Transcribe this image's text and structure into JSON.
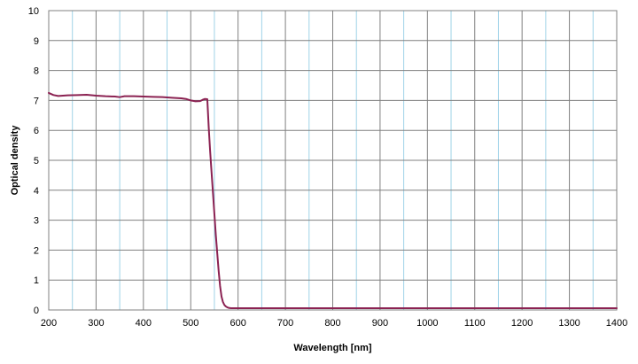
{
  "chart_data": {
    "type": "line",
    "title": "",
    "xlabel": "Wavelength [nm]",
    "ylabel": "Optical density",
    "xlim": [
      200,
      1400
    ],
    "ylim": [
      0,
      10
    ],
    "x_ticks": [
      200,
      300,
      400,
      500,
      600,
      700,
      800,
      900,
      1000,
      1100,
      1200,
      1300,
      1400
    ],
    "y_ticks": [
      0,
      1,
      2,
      3,
      4,
      5,
      6,
      7,
      8,
      9,
      10
    ],
    "x_minor_gridlines": [
      250,
      350,
      450,
      550,
      650,
      750,
      850,
      950,
      1050,
      1150,
      1250,
      1350
    ],
    "grid": true,
    "legend": "none",
    "colors": {
      "series": "#8B2252",
      "major_grid": "#808080",
      "minor_grid": "#9FD3E8",
      "plot_border": "#808080"
    },
    "series": [
      {
        "x": [
          200,
          210,
          220,
          240,
          260,
          280,
          300,
          320,
          340,
          350,
          360,
          380,
          400,
          420,
          440,
          460,
          480,
          490,
          500,
          510,
          520,
          525,
          530,
          535,
          538,
          541,
          544,
          547,
          550,
          553,
          556,
          559,
          562,
          565,
          568,
          571,
          574,
          577,
          580,
          585,
          590,
          600,
          650,
          700,
          800,
          900,
          1000,
          1100,
          1200,
          1300,
          1400
        ],
        "y": [
          7.25,
          7.18,
          7.15,
          7.17,
          7.18,
          7.19,
          7.16,
          7.14,
          7.13,
          7.11,
          7.14,
          7.14,
          7.13,
          7.12,
          7.11,
          7.09,
          7.07,
          7.05,
          7.0,
          6.97,
          6.98,
          7.02,
          7.05,
          7.04,
          6.1,
          5.3,
          4.6,
          3.9,
          3.2,
          2.5,
          1.9,
          1.3,
          0.8,
          0.45,
          0.27,
          0.17,
          0.12,
          0.09,
          0.07,
          0.06,
          0.06,
          0.06,
          0.06,
          0.06,
          0.06,
          0.06,
          0.06,
          0.06,
          0.06,
          0.06,
          0.06
        ]
      }
    ]
  }
}
